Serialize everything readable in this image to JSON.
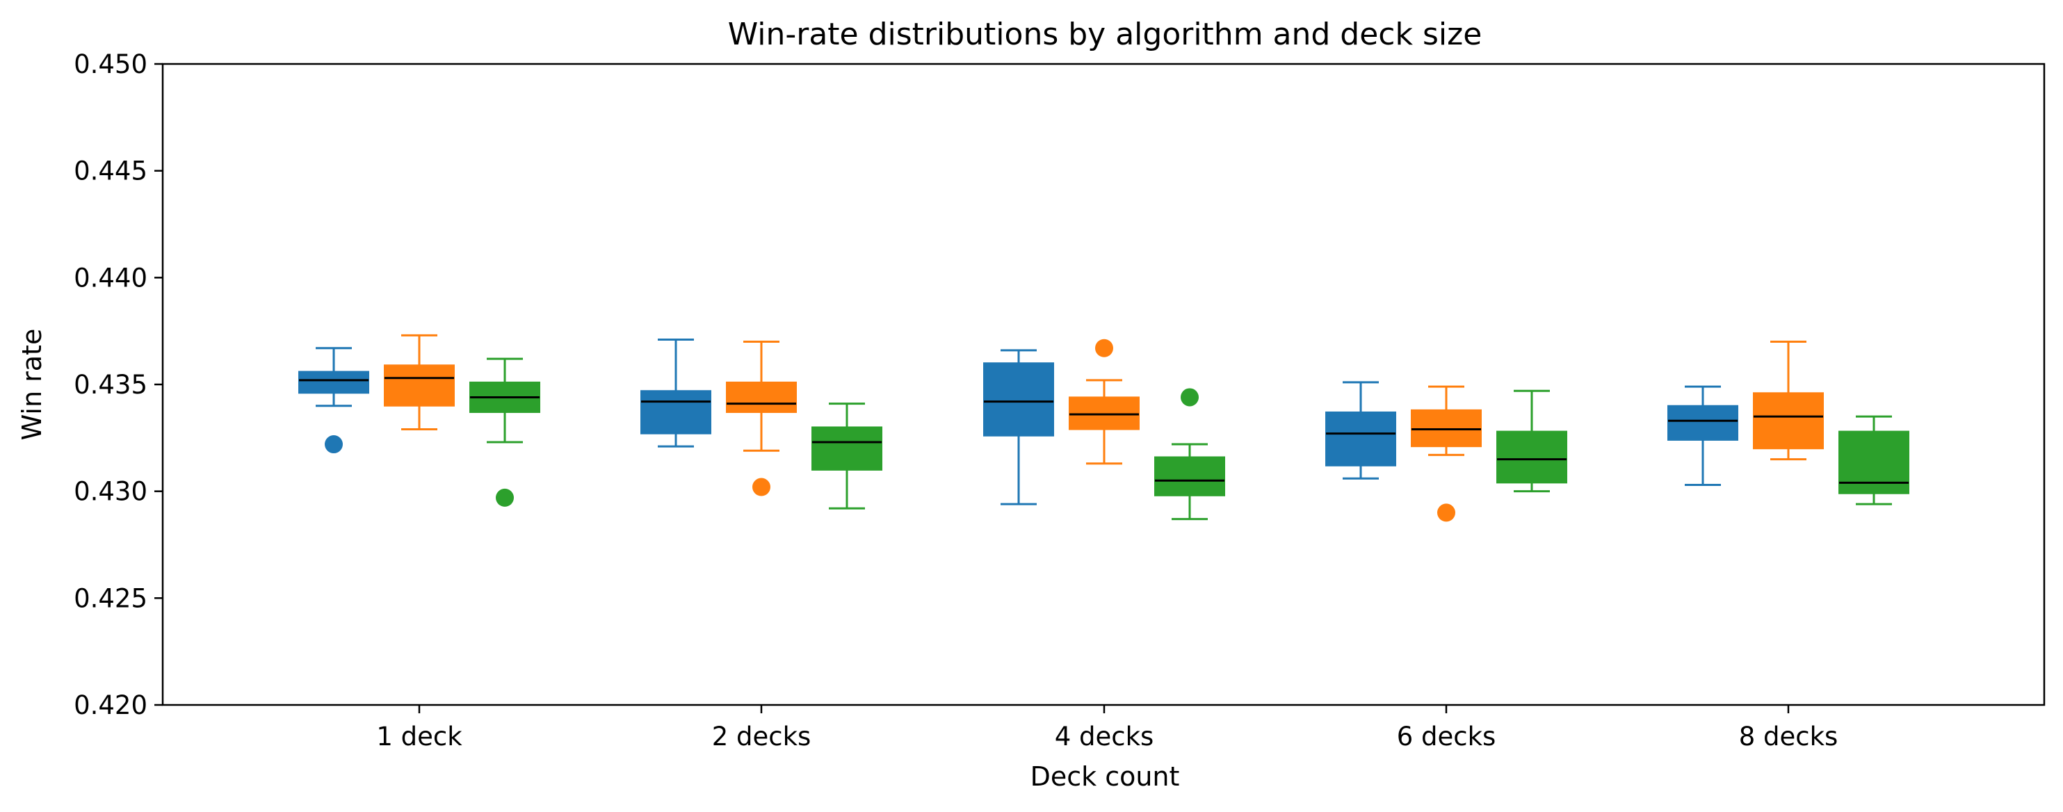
{
  "chart_data": {
    "type": "box",
    "title": "Win-rate distributions by algorithm and deck size",
    "xlabel": "Deck count",
    "ylabel": "Win rate",
    "ylim": [
      0.42,
      0.45
    ],
    "yticks": [
      "0.420",
      "0.425",
      "0.430",
      "0.435",
      "0.440",
      "0.445",
      "0.450"
    ],
    "categories": [
      "1 deck",
      "2 decks",
      "4 decks",
      "6 decks",
      "8 decks"
    ],
    "grid": false,
    "legend": "none",
    "series": [
      {
        "color": "#1f77b4",
        "boxes": [
          {
            "whislo": 0.434,
            "q1": 0.4346,
            "med": 0.4352,
            "q3": 0.4356,
            "whishi": 0.4367,
            "fliers": [
              0.4322
            ]
          },
          {
            "whislo": 0.4321,
            "q1": 0.4327,
            "med": 0.4342,
            "q3": 0.4347,
            "whishi": 0.4371,
            "fliers": []
          },
          {
            "whislo": 0.4294,
            "q1": 0.4326,
            "med": 0.4342,
            "q3": 0.436,
            "whishi": 0.4366,
            "fliers": []
          },
          {
            "whislo": 0.4306,
            "q1": 0.4312,
            "med": 0.4327,
            "q3": 0.4337,
            "whishi": 0.4351,
            "fliers": []
          },
          {
            "whislo": 0.4303,
            "q1": 0.4324,
            "med": 0.4333,
            "q3": 0.434,
            "whishi": 0.4349,
            "fliers": []
          }
        ]
      },
      {
        "color": "#ff7f0e",
        "boxes": [
          {
            "whislo": 0.4329,
            "q1": 0.434,
            "med": 0.4353,
            "q3": 0.4359,
            "whishi": 0.4373,
            "fliers": []
          },
          {
            "whislo": 0.4319,
            "q1": 0.4337,
            "med": 0.4341,
            "q3": 0.4351,
            "whishi": 0.437,
            "fliers": [
              0.4302
            ]
          },
          {
            "whislo": 0.4313,
            "q1": 0.4329,
            "med": 0.4336,
            "q3": 0.4344,
            "whishi": 0.4352,
            "fliers": [
              0.4367
            ]
          },
          {
            "whislo": 0.4317,
            "q1": 0.4321,
            "med": 0.4329,
            "q3": 0.4338,
            "whishi": 0.4349,
            "fliers": [
              0.429
            ]
          },
          {
            "whislo": 0.4315,
            "q1": 0.432,
            "med": 0.4335,
            "q3": 0.4346,
            "whishi": 0.437,
            "fliers": []
          }
        ]
      },
      {
        "color": "#2ca02c",
        "boxes": [
          {
            "whislo": 0.4323,
            "q1": 0.4337,
            "med": 0.4344,
            "q3": 0.4351,
            "whishi": 0.4362,
            "fliers": [
              0.4297
            ]
          },
          {
            "whislo": 0.4292,
            "q1": 0.431,
            "med": 0.4323,
            "q3": 0.433,
            "whishi": 0.4341,
            "fliers": []
          },
          {
            "whislo": 0.4287,
            "q1": 0.4298,
            "med": 0.4305,
            "q3": 0.4316,
            "whishi": 0.4322,
            "fliers": [
              0.4344
            ]
          },
          {
            "whislo": 0.43,
            "q1": 0.4304,
            "med": 0.4315,
            "q3": 0.4328,
            "whishi": 0.4347,
            "fliers": []
          },
          {
            "whislo": 0.4294,
            "q1": 0.4299,
            "med": 0.4304,
            "q3": 0.4328,
            "whishi": 0.4335,
            "fliers": []
          }
        ]
      }
    ]
  }
}
